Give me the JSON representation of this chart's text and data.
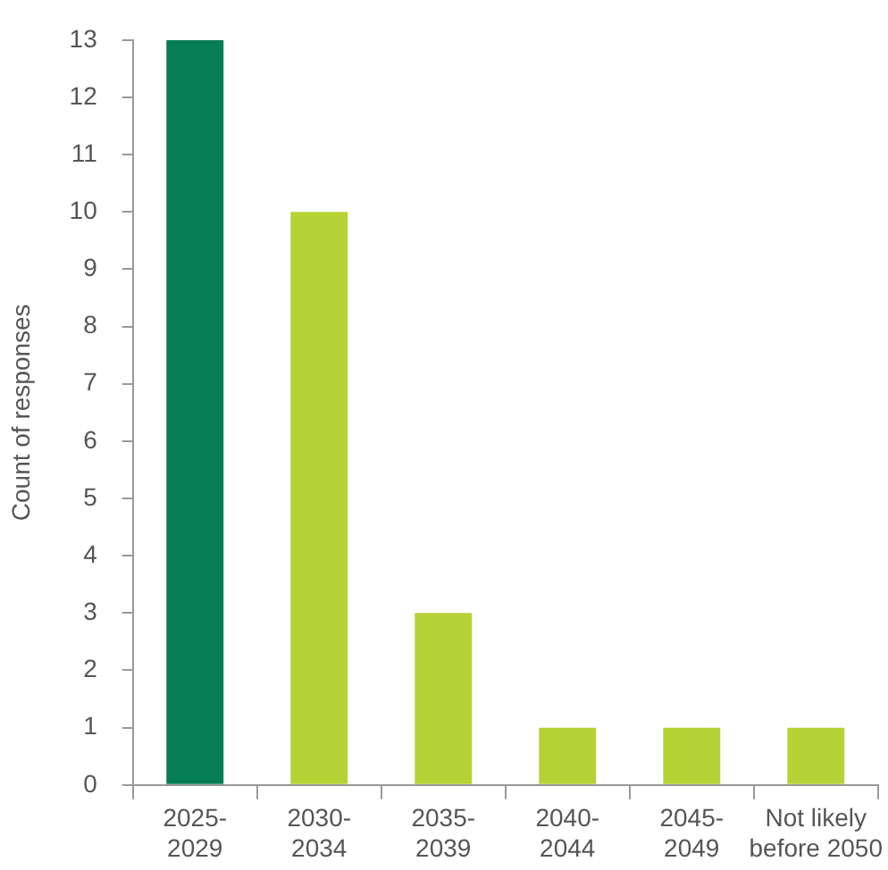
{
  "chart_data": {
    "type": "bar",
    "ylabel": "Count of responses",
    "categories": [
      "2025-\n2029",
      "2030-\n2034",
      "2035-\n2039",
      "2040-\n2044",
      "2045-\n2049",
      "Not likely\nbefore 2050"
    ],
    "values": [
      13,
      10,
      3,
      1,
      1,
      1
    ],
    "colors": [
      "#077d55",
      "#b5d334",
      "#b5d334",
      "#b5d334",
      "#b5d334",
      "#b5d334"
    ],
    "ylim": [
      0,
      13
    ],
    "yticks": [
      0,
      1,
      2,
      3,
      4,
      5,
      6,
      7,
      8,
      9,
      10,
      11,
      12,
      13
    ],
    "grid": false,
    "legend": false
  }
}
